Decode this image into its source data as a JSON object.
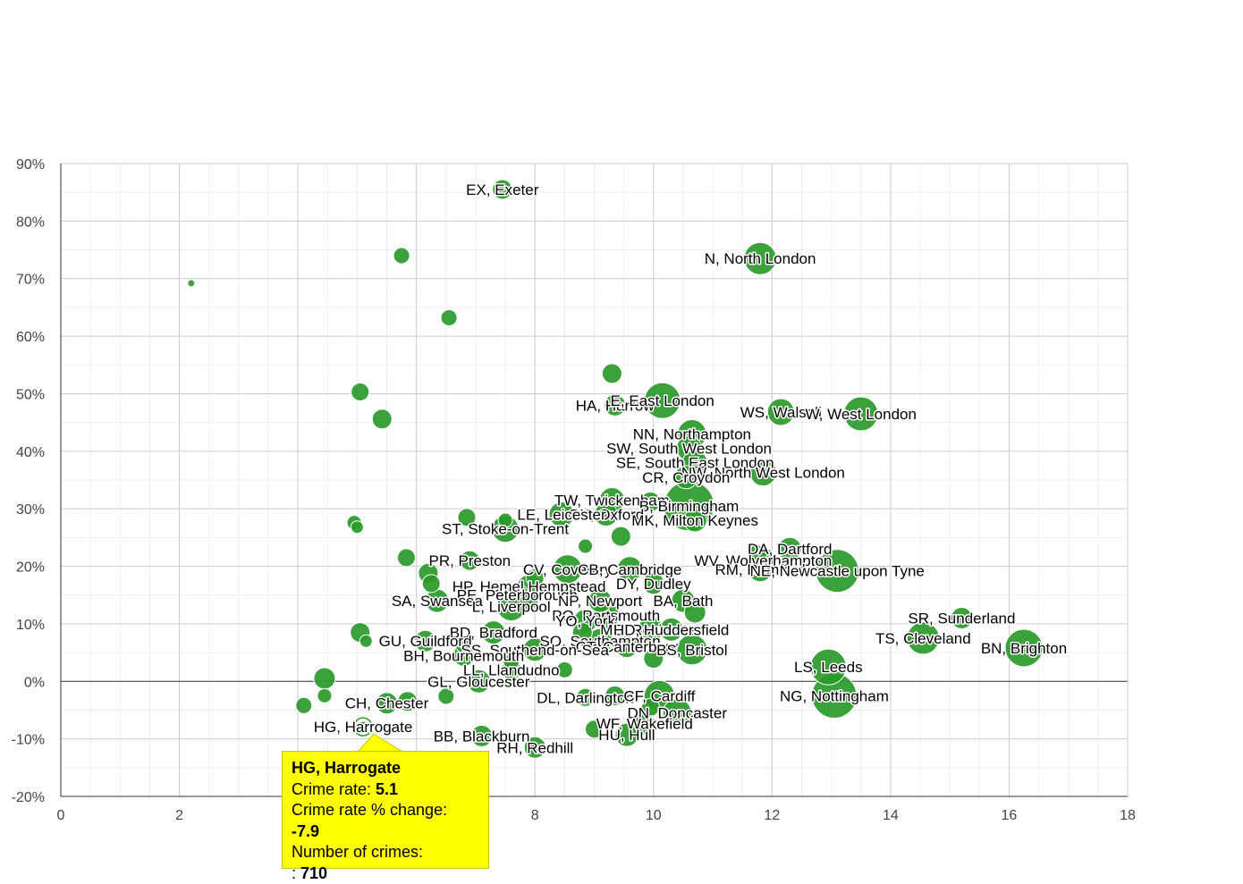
{
  "chart_data": {
    "type": "scatter",
    "title": "",
    "xlabel": "",
    "ylabel": "",
    "xlim": [
      0,
      18
    ],
    "ylim": [
      -20,
      90
    ],
    "x_ticks": [
      "0",
      "2",
      "4",
      "6",
      "8",
      "10",
      "12",
      "14",
      "16",
      "18"
    ],
    "y_ticks": [
      "-20%",
      "-10%",
      "0%",
      "10%",
      "20%",
      "30%",
      "40%",
      "50%",
      "60%",
      "70%",
      "80%",
      "90%"
    ],
    "grid": true,
    "bubble_color": "#2a9a2a",
    "points": [
      {
        "label": "EX, Exeter",
        "x": 7.45,
        "y": 85.5,
        "size": 11
      },
      {
        "label": "",
        "x": 2.2,
        "y": 69.2,
        "size": 4
      },
      {
        "label": "",
        "x": 5.75,
        "y": 74.0,
        "size": 9
      },
      {
        "label": "",
        "x": 6.55,
        "y": 63.2,
        "size": 9
      },
      {
        "label": "N, North London",
        "x": 11.8,
        "y": 73.5,
        "size": 18
      },
      {
        "label": "",
        "x": 5.05,
        "y": 50.3,
        "size": 10
      },
      {
        "label": "",
        "x": 5.42,
        "y": 45.6,
        "size": 11
      },
      {
        "label": "",
        "x": 9.3,
        "y": 53.5,
        "size": 11
      },
      {
        "label": "HA, Harrow",
        "x": 9.35,
        "y": 48.0,
        "size": 12
      },
      {
        "label": "E, East London",
        "x": 10.15,
        "y": 48.8,
        "size": 20
      },
      {
        "label": "WS, Walsall",
        "x": 12.15,
        "y": 46.8,
        "size": 15
      },
      {
        "label": "W, West London",
        "x": 13.5,
        "y": 46.5,
        "size": 19
      },
      {
        "label": "NN, Northampton",
        "x": 10.65,
        "y": 43.0,
        "size": 16
      },
      {
        "label": "SW, South West London",
        "x": 10.6,
        "y": 40.5,
        "size": 14
      },
      {
        "label": "SE, South East London",
        "x": 10.7,
        "y": 38.0,
        "size": 14
      },
      {
        "label": "NW, North West London",
        "x": 11.85,
        "y": 36.3,
        "size": 15
      },
      {
        "label": "CR, Croydon",
        "x": 10.55,
        "y": 35.5,
        "size": 13
      },
      {
        "label": "TW, Twickenham",
        "x": 9.3,
        "y": 31.5,
        "size": 14
      },
      {
        "label": "B, Birmingham",
        "x": 10.6,
        "y": 30.5,
        "size": 28
      },
      {
        "label": "",
        "x": 9.95,
        "y": 31.2,
        "size": 11
      },
      {
        "label": "OX, Oxford",
        "x": 9.2,
        "y": 29.0,
        "size": 13
      },
      {
        "label": "MK, Milton Keynes",
        "x": 10.7,
        "y": 28.0,
        "size": 13
      },
      {
        "label": "LE, Leicester",
        "x": 8.45,
        "y": 29.0,
        "size": 14
      },
      {
        "label": "",
        "x": 6.85,
        "y": 28.5,
        "size": 10
      },
      {
        "label": "",
        "x": 7.5,
        "y": 28.0,
        "size": 8
      },
      {
        "label": "ST, Stoke-on-Trent",
        "x": 7.5,
        "y": 26.5,
        "size": 15
      },
      {
        "label": "",
        "x": 4.95,
        "y": 27.6,
        "size": 8
      },
      {
        "label": "",
        "x": 5.0,
        "y": 26.8,
        "size": 7
      },
      {
        "label": "",
        "x": 9.45,
        "y": 25.2,
        "size": 11
      },
      {
        "label": "",
        "x": 8.85,
        "y": 23.5,
        "size": 8
      },
      {
        "label": "DA, Dartford",
        "x": 12.3,
        "y": 23.0,
        "size": 13
      },
      {
        "label": "",
        "x": 11.75,
        "y": 22.0,
        "size": 11
      },
      {
        "label": "WV, Wolverhampton",
        "x": 11.85,
        "y": 21.0,
        "size": 14
      },
      {
        "label": "RM, Romford",
        "x": 11.8,
        "y": 19.5,
        "size": 14
      },
      {
        "label": "NE, Newcastle upon Tyne",
        "x": 13.1,
        "y": 19.2,
        "size": 24
      },
      {
        "label": "",
        "x": 5.83,
        "y": 21.5,
        "size": 10
      },
      {
        "label": "PR, Preston",
        "x": 6.9,
        "y": 21.0,
        "size": 11
      },
      {
        "label": "",
        "x": 6.2,
        "y": 18.8,
        "size": 11
      },
      {
        "label": "",
        "x": 6.25,
        "y": 17.0,
        "size": 10
      },
      {
        "label": "CV, Coventry",
        "x": 8.55,
        "y": 19.5,
        "size": 16
      },
      {
        "label": "CB, Cambridge",
        "x": 9.6,
        "y": 19.5,
        "size": 14
      },
      {
        "label": "DY, Dudley",
        "x": 10.0,
        "y": 17.0,
        "size": 12
      },
      {
        "label": "",
        "x": 8.0,
        "y": 18.0,
        "size": 10
      },
      {
        "label": "HP, Hemel Hempstead",
        "x": 7.9,
        "y": 16.5,
        "size": 13
      },
      {
        "label": "PE, Peterborough",
        "x": 7.7,
        "y": 15.0,
        "size": 13
      },
      {
        "label": "NP, Newport",
        "x": 9.1,
        "y": 14.0,
        "size": 13
      },
      {
        "label": "BA, Bath",
        "x": 10.5,
        "y": 14.0,
        "size": 13
      },
      {
        "label": "SA, Swansea",
        "x": 6.35,
        "y": 14.0,
        "size": 13
      },
      {
        "label": "L, Liverpool",
        "x": 7.6,
        "y": 13.0,
        "size": 16
      },
      {
        "label": "",
        "x": 7.9,
        "y": 14.0,
        "size": 10
      },
      {
        "label": "PO, Portsmouth",
        "x": 9.2,
        "y": 11.5,
        "size": 15
      },
      {
        "label": "",
        "x": 10.7,
        "y": 12.0,
        "size": 12
      },
      {
        "label": "YO, York",
        "x": 8.85,
        "y": 10.5,
        "size": 13
      },
      {
        "label": "",
        "x": 8.8,
        "y": 8.5,
        "size": 11
      },
      {
        "label": "ME, Rochester",
        "x": 9.95,
        "y": 9.0,
        "size": 14
      },
      {
        "label": "HD, Huddersfield",
        "x": 10.3,
        "y": 9.0,
        "size": 13
      },
      {
        "label": "SO, Southampton",
        "x": 9.1,
        "y": 7.0,
        "size": 14
      },
      {
        "label": "CT, Canterbury",
        "x": 9.55,
        "y": 6.0,
        "size": 12
      },
      {
        "label": "BS, Bristol",
        "x": 10.65,
        "y": 5.5,
        "size": 17
      },
      {
        "label": "",
        "x": 10.0,
        "y": 4.0,
        "size": 11
      },
      {
        "label": "BD, Bradford",
        "x": 7.3,
        "y": 8.5,
        "size": 13
      },
      {
        "label": "",
        "x": 5.05,
        "y": 8.5,
        "size": 11
      },
      {
        "label": "",
        "x": 5.15,
        "y": 7.0,
        "size": 7
      },
      {
        "label": "GU, Guildford",
        "x": 6.15,
        "y": 7.0,
        "size": 12
      },
      {
        "label": "",
        "x": 6.8,
        "y": 6.5,
        "size": 10
      },
      {
        "label": "SS, Southend-on-Sea",
        "x": 8.0,
        "y": 5.5,
        "size": 13
      },
      {
        "label": "BH, Bournemouth",
        "x": 6.8,
        "y": 4.5,
        "size": 12
      },
      {
        "label": "",
        "x": 7.6,
        "y": 3.5,
        "size": 9
      },
      {
        "label": "",
        "x": 8.5,
        "y": 2.0,
        "size": 9
      },
      {
        "label": "LL, Llandudno",
        "x": 7.6,
        "y": 2.0,
        "size": 11
      },
      {
        "label": "GL, Gloucester",
        "x": 7.05,
        "y": 0.0,
        "size": 13
      },
      {
        "label": "",
        "x": 4.45,
        "y": 0.5,
        "size": 12
      },
      {
        "label": "",
        "x": 4.45,
        "y": -2.5,
        "size": 8
      },
      {
        "label": "",
        "x": 4.1,
        "y": -4.2,
        "size": 9
      },
      {
        "label": "",
        "x": 6.5,
        "y": -2.6,
        "size": 9
      },
      {
        "label": "CH, Chester",
        "x": 5.5,
        "y": -3.8,
        "size": 12
      },
      {
        "label": "",
        "x": 5.85,
        "y": -3.5,
        "size": 11
      },
      {
        "label": "DL, Darlington",
        "x": 8.85,
        "y": -2.8,
        "size": 10
      },
      {
        "label": "CF, Cardiff",
        "x": 10.1,
        "y": -2.5,
        "size": 17
      },
      {
        "label": "",
        "x": 9.35,
        "y": -2.5,
        "size": 11
      },
      {
        "label": "DN, Doncaster",
        "x": 10.4,
        "y": -5.5,
        "size": 16
      },
      {
        "label": "",
        "x": 9.95,
        "y": -4.5,
        "size": 10
      },
      {
        "label": "WF, Wakefield",
        "x": 9.85,
        "y": -7.3,
        "size": 12
      },
      {
        "label": "",
        "x": 9.0,
        "y": -8.3,
        "size": 10
      },
      {
        "label": "HU, Hull",
        "x": 9.55,
        "y": -9.3,
        "size": 13
      },
      {
        "label": "BB, Blackburn",
        "x": 7.1,
        "y": -9.5,
        "size": 12
      },
      {
        "label": "RH, Redhill",
        "x": 8.0,
        "y": -11.5,
        "size": 12
      },
      {
        "label": "HG, Harrogate",
        "x": 5.1,
        "y": -7.9,
        "size": 7,
        "highlight": true
      },
      {
        "label": "SR, Sunderland",
        "x": 15.2,
        "y": 11.0,
        "size": 12
      },
      {
        "label": "TS, Cleveland",
        "x": 14.55,
        "y": 7.5,
        "size": 18
      },
      {
        "label": "BN, Brighton",
        "x": 16.25,
        "y": 5.8,
        "size": 21
      },
      {
        "label": "LS, Leeds",
        "x": 12.95,
        "y": 2.5,
        "size": 20
      },
      {
        "label": "NG, Nottingham",
        "x": 13.05,
        "y": -2.5,
        "size": 25
      }
    ]
  },
  "tooltip": {
    "title": "HG, Harrogate",
    "rate_label": "Crime rate:",
    "rate_value": "5.1",
    "change_label": "Crime rate % change:",
    "change_value": "-7.9",
    "count_label": "Number of crimes:",
    "count_prefix": ":",
    "count_value": "710"
  }
}
